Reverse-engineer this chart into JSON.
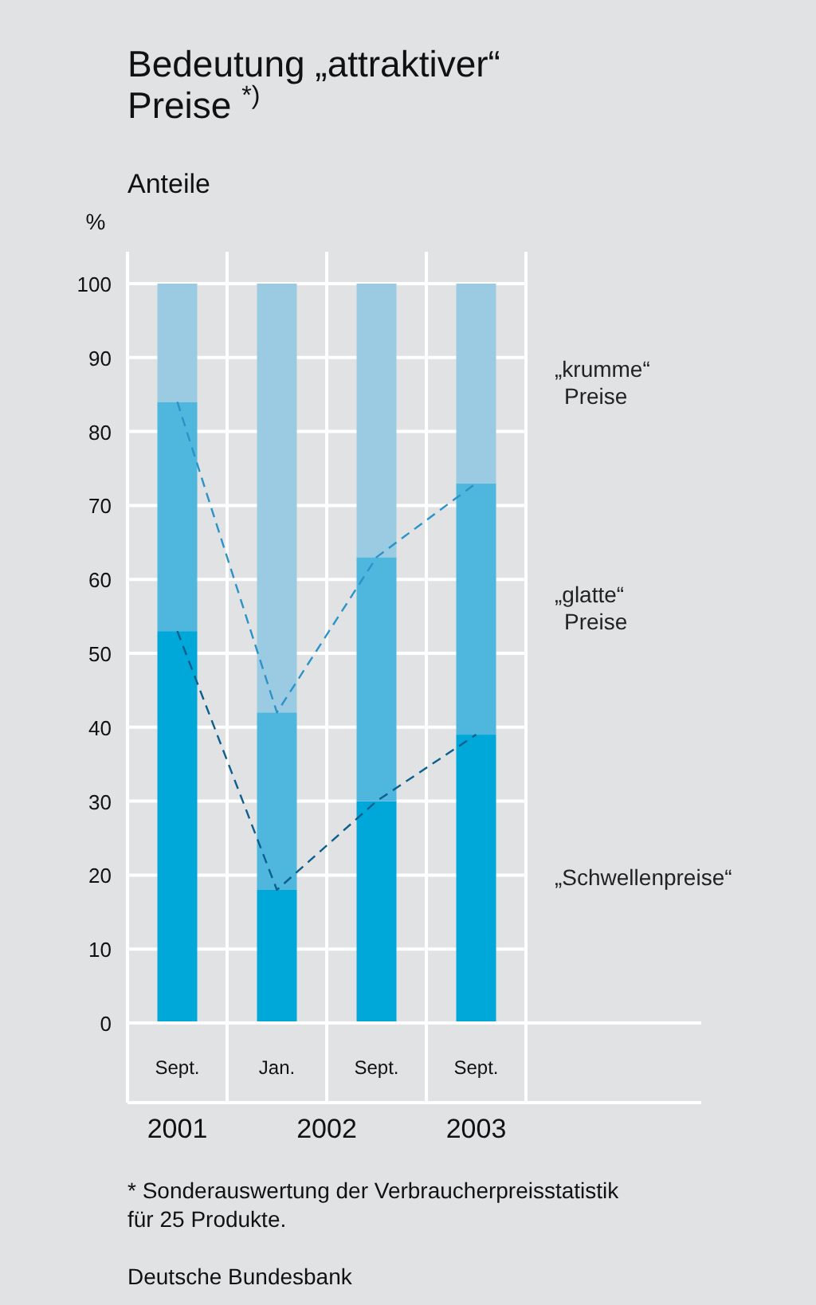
{
  "chart_data": {
    "type": "bar",
    "title": "Bedeutung „attraktiver“ Preise $^{*)}$",
    "subtitle": "Anteile",
    "ylabel": "%",
    "categories": [
      "Sept.",
      "Jan.",
      "Sept.",
      "Sept."
    ],
    "series": [
      {
        "name": "„Schwellenpreise“",
        "color": "#00a8d9",
        "values": [
          53,
          18,
          30,
          39
        ]
      },
      {
        "name": "„glatte“ Preise",
        "color": "#4fb7de",
        "values": [
          31,
          24,
          33,
          34
        ]
      },
      {
        "name": "„krumme“ Preise",
        "color": "#9acbe2",
        "values": [
          16,
          58,
          37,
          27
        ]
      },
      {
        "type": "line",
        "color": "#0c5f8c",
        "line_style": "dashed",
        "marker": "none",
        "values": [
          53,
          18,
          30,
          39
        ]
      },
      {
        "type": "line",
        "color": "#2a93c8",
        "line_style": "dashed",
        "marker": "none",
        "values": [
          84,
          42,
          63,
          73
        ]
      }
    ],
    "stacked": true,
    "ylim": [
      0,
      100
    ],
    "yticks": [
      0,
      10,
      20,
      30,
      40,
      50,
      60,
      70,
      80,
      90,
      100
    ],
    "grid": true,
    "annotations": [
      "2001",
      "2002",
      "2003",
      "* Sonderauswertung der Verbraucherpreisstatistik für 25 Produkte.",
      "Deutsche Bundesbank"
    ]
  }
}
